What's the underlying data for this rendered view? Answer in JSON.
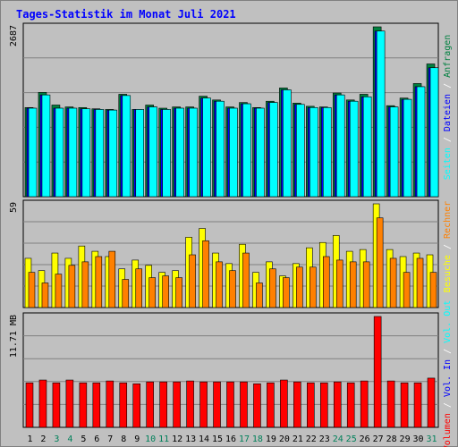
{
  "page": {
    "title": "Tages-Statistik im Monat Juli 2021",
    "border_color": "#808080",
    "bg_color": "#c0c0c0",
    "title_color": "#0000ff"
  },
  "chart_data": [
    {
      "type": "bar",
      "panel": "requests",
      "max_label": "2687",
      "y_max": 2687,
      "categories": [
        "1",
        "2",
        "3",
        "4",
        "5",
        "6",
        "7",
        "8",
        "9",
        "10",
        "11",
        "12",
        "13",
        "14",
        "15",
        "16",
        "17",
        "18",
        "19",
        "20",
        "21",
        "22",
        "23",
        "24",
        "25",
        "26",
        "27",
        "28",
        "29",
        "30",
        "31"
      ],
      "weekend_days": [
        "3",
        "4",
        "10",
        "11",
        "17",
        "18",
        "24",
        "25",
        "31"
      ],
      "series": [
        {
          "name": "Anfragen",
          "color": "#008040",
          "values": [
            1410,
            1650,
            1450,
            1420,
            1410,
            1390,
            1380,
            1620,
            1380,
            1450,
            1400,
            1420,
            1420,
            1590,
            1530,
            1420,
            1490,
            1410,
            1510,
            1720,
            1480,
            1430,
            1420,
            1640,
            1530,
            1620,
            2687,
            1440,
            1560,
            1790,
            2100
          ]
        },
        {
          "name": "Dateien",
          "color": "#0000ff",
          "values": [
            1400,
            1610,
            1400,
            1400,
            1390,
            1380,
            1370,
            1600,
            1380,
            1420,
            1380,
            1400,
            1400,
            1560,
            1510,
            1400,
            1470,
            1400,
            1490,
            1690,
            1460,
            1410,
            1410,
            1610,
            1510,
            1580,
            2620,
            1420,
            1540,
            1740,
            2040
          ]
        },
        {
          "name": "Seiten",
          "color": "#00ffff",
          "values": [
            1400,
            1610,
            1400,
            1400,
            1390,
            1380,
            1370,
            1600,
            1380,
            1420,
            1380,
            1400,
            1400,
            1560,
            1510,
            1400,
            1470,
            1400,
            1490,
            1690,
            1460,
            1410,
            1410,
            1610,
            1510,
            1580,
            2620,
            1420,
            1540,
            1740,
            2040
          ]
        }
      ],
      "legend_colors": {
        "Seiten": "#00ffff",
        "slash": "#ffffff",
        "Dateien": "#0000ff",
        "Anfragen": "#008040"
      }
    },
    {
      "type": "bar",
      "panel": "visits",
      "max_label": "59",
      "y_max": 59,
      "series": [
        {
          "name": "Besuche",
          "color": "#ffff00",
          "values": [
            28,
            21,
            31,
            28,
            35,
            32,
            29,
            22,
            27,
            24,
            20,
            21,
            40,
            45,
            31,
            25,
            36,
            20,
            26,
            18,
            25,
            34,
            37,
            41,
            32,
            33,
            59,
            33,
            29,
            31,
            30
          ]
        },
        {
          "name": "Rechner",
          "color": "#ff8000",
          "values": [
            20,
            14,
            19,
            24,
            26,
            29,
            32,
            16,
            22,
            17,
            18,
            17,
            30,
            38,
            26,
            21,
            31,
            14,
            22,
            17,
            23,
            23,
            29,
            27,
            26,
            26,
            51,
            28,
            20,
            28,
            20
          ]
        }
      ],
      "legend_colors": {
        "Besuche": "#ffff00",
        "Rechner": "#ff8000"
      }
    },
    {
      "type": "bar",
      "panel": "volume",
      "max_label": "11.71 MB",
      "y_max": 11.71,
      "series": [
        {
          "name": "Volumen",
          "color": "#ff0000",
          "values": [
            4.7,
            5.0,
            4.7,
            5.0,
            4.7,
            4.7,
            4.9,
            4.7,
            4.6,
            4.8,
            4.8,
            4.8,
            4.9,
            4.8,
            4.8,
            4.8,
            4.8,
            4.6,
            4.7,
            5.0,
            4.8,
            4.7,
            4.7,
            4.8,
            4.7,
            4.9,
            11.71,
            4.9,
            4.7,
            4.7,
            5.2
          ]
        }
      ],
      "legend": {
        "volumen": "Volumen",
        "vol_in": "Vol. In",
        "vol_out": "Vol. Out",
        "sep": " / "
      },
      "legend_colors": {
        "Volumen": "#ff0000",
        "Vol. In": "#0000ff",
        "Vol. Out": "#00ffff",
        "sep": "#ffffff"
      },
      "legend_visits": {
        "besuche": "Besuche",
        "rechner": "Rechner",
        "sep": " / "
      },
      "legend_requests": {
        "seiten": "Seiten",
        "dateien": "Dateien",
        "anfragen": "Anfragen",
        "sep": " / "
      }
    }
  ]
}
